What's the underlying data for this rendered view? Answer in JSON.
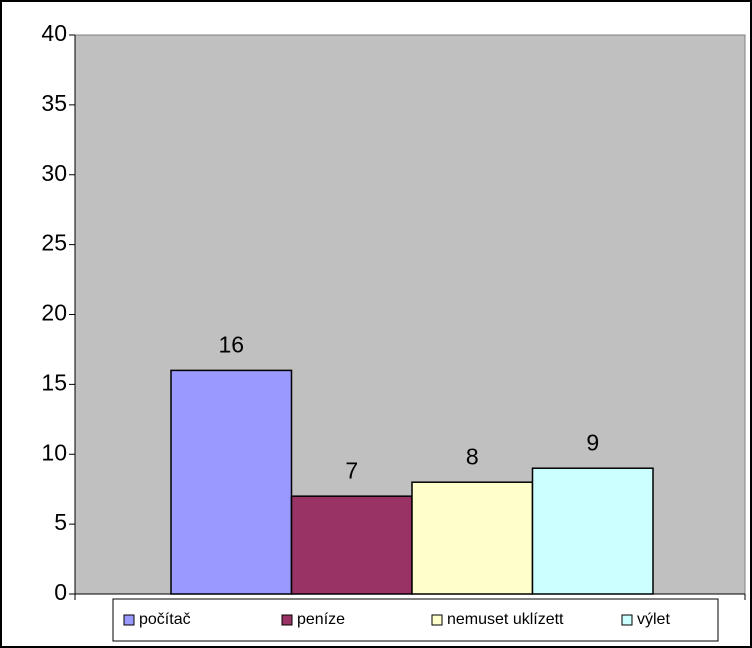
{
  "chart_data": {
    "type": "bar",
    "series": [
      {
        "name": "počítač",
        "color": "#9999ff",
        "values": [
          16
        ]
      },
      {
        "name": "peníze",
        "color": "#993366",
        "values": [
          7
        ]
      },
      {
        "name": "nemuset uklízett",
        "color": "#ffffcc",
        "values": [
          8
        ]
      },
      {
        "name": "výlet",
        "color": "#ccffff",
        "values": [
          9
        ]
      }
    ],
    "ylim": [
      0,
      40
    ],
    "yticks": [
      0,
      5,
      10,
      15,
      20,
      25,
      30,
      35,
      40
    ],
    "plot_background": "#c0c0c0",
    "legend": "bottom"
  }
}
